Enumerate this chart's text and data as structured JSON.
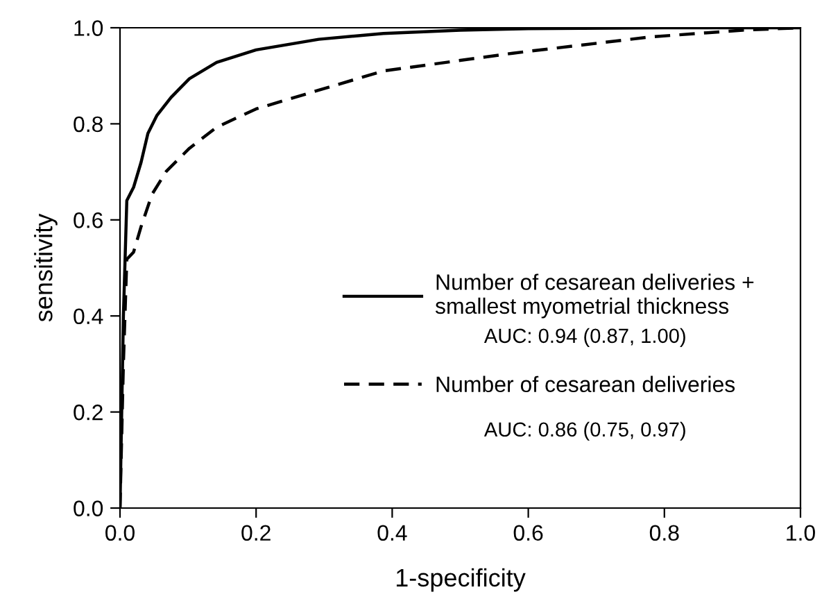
{
  "chart_data": {
    "type": "line",
    "xlabel": "1-specificity",
    "ylabel": "sensitivity",
    "series": [
      {
        "name": "Number of cesarean deliveries +\nsmallest myometrial thickness",
        "color": "#000000",
        "line_style": "solid",
        "x": [
          0,
          0.005,
          0.01,
          0.02,
          0.031,
          0.041,
          0.054,
          0.075,
          0.102,
          0.142,
          0.2,
          0.292,
          0.387,
          0.5,
          0.6,
          0.8,
          1.0
        ],
        "values": [
          0,
          0.4,
          0.64,
          0.668,
          0.72,
          0.78,
          0.817,
          0.855,
          0.894,
          0.928,
          0.954,
          0.976,
          0.988,
          0.995,
          0.998,
          1.0,
          1.0
        ]
      },
      {
        "name": "Number of cesarean deliveries",
        "color": "#000000",
        "line_style": "dashed",
        "x": [
          0,
          0.005,
          0.01,
          0.02,
          0.031,
          0.047,
          0.068,
          0.102,
          0.142,
          0.2,
          0.292,
          0.387,
          0.577,
          0.78,
          0.915,
          1.0
        ],
        "values": [
          0,
          0.3,
          0.518,
          0.533,
          0.586,
          0.653,
          0.701,
          0.749,
          0.793,
          0.831,
          0.87,
          0.91,
          0.947,
          0.981,
          0.995,
          1.0
        ]
      }
    ],
    "annotations": [
      "AUC: 0.94 (0.87, 1.00)",
      "AUC: 0.86 (0.75, 0.97)"
    ],
    "xlim": [
      0,
      1
    ],
    "ylim": [
      0,
      1
    ],
    "xticks": [
      {
        "value": 0,
        "label": "0.0"
      },
      0.2,
      0.4,
      0.6,
      0.8,
      {
        "value": 1,
        "label": "1.0"
      }
    ],
    "yticks": [
      {
        "value": 0,
        "label": "0.0"
      },
      0.2,
      0.4,
      0.6,
      0.8,
      {
        "value": 1,
        "label": "1.0"
      }
    ],
    "legend": "right",
    "grid": false
  }
}
